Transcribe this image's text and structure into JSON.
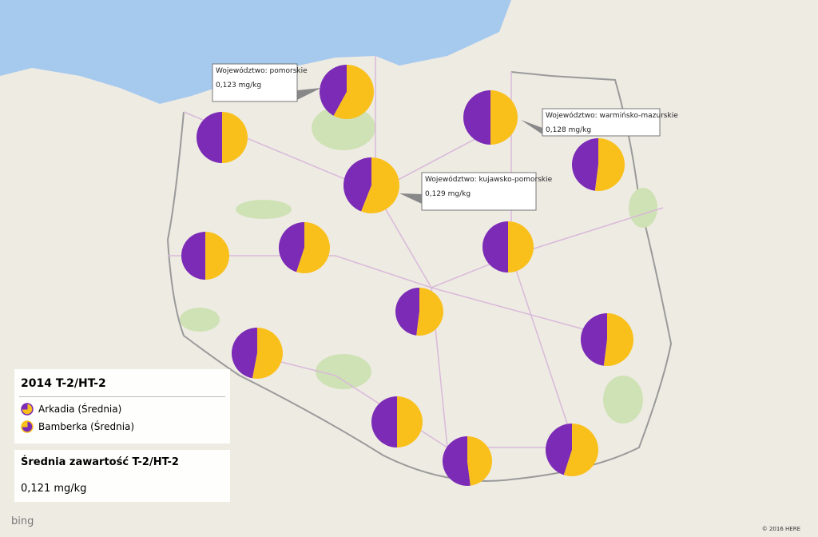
{
  "legend": {
    "title": "2014 T-2/HT-2",
    "items": [
      {
        "label": "Arkadia (Średnia)",
        "color": "#7b2bb5"
      },
      {
        "label": "Bamberka (Średnia)",
        "color": "#f9c01c"
      }
    ]
  },
  "pies": [
    {
      "arkadia": 50,
      "bamberka": 50
    },
    {
      "arkadia": 42,
      "bamberka": 58
    },
    {
      "arkadia": 50,
      "bamberka": 50
    },
    {
      "arkadia": 48,
      "bamberka": 52
    },
    {
      "arkadia": 44,
      "bamberka": 56
    },
    {
      "arkadia": 50,
      "bamberka": 50
    },
    {
      "arkadia": 45,
      "bamberka": 55
    },
    {
      "arkadia": 50,
      "bamberka": 50
    },
    {
      "arkadia": 48,
      "bamberka": 52
    },
    {
      "arkadia": 47,
      "bamberka": 53
    },
    {
      "arkadia": 48,
      "bamberka": 52
    },
    {
      "arkadia": 50,
      "bamberka": 50
    },
    {
      "arkadia": 52,
      "bamberka": 48
    },
    {
      "arkadia": 45,
      "bamberka": 55
    }
  ],
  "tooltips": [
    {
      "region": "Województwo: pomorskie",
      "value": "0,123 mg/kg"
    },
    {
      "region": "Województwo: warmińsko-mazurskie",
      "value": "0,128 mg/kg"
    },
    {
      "region": "Województwo: kujawsko-pomorskie",
      "value": "0,129 mg/kg"
    }
  ],
  "card": {
    "title": "Średnia zawartość T-2/HT-2",
    "value": "0,121 mg/kg"
  },
  "logo": "bing",
  "copyright": "© 2016 HERE"
}
